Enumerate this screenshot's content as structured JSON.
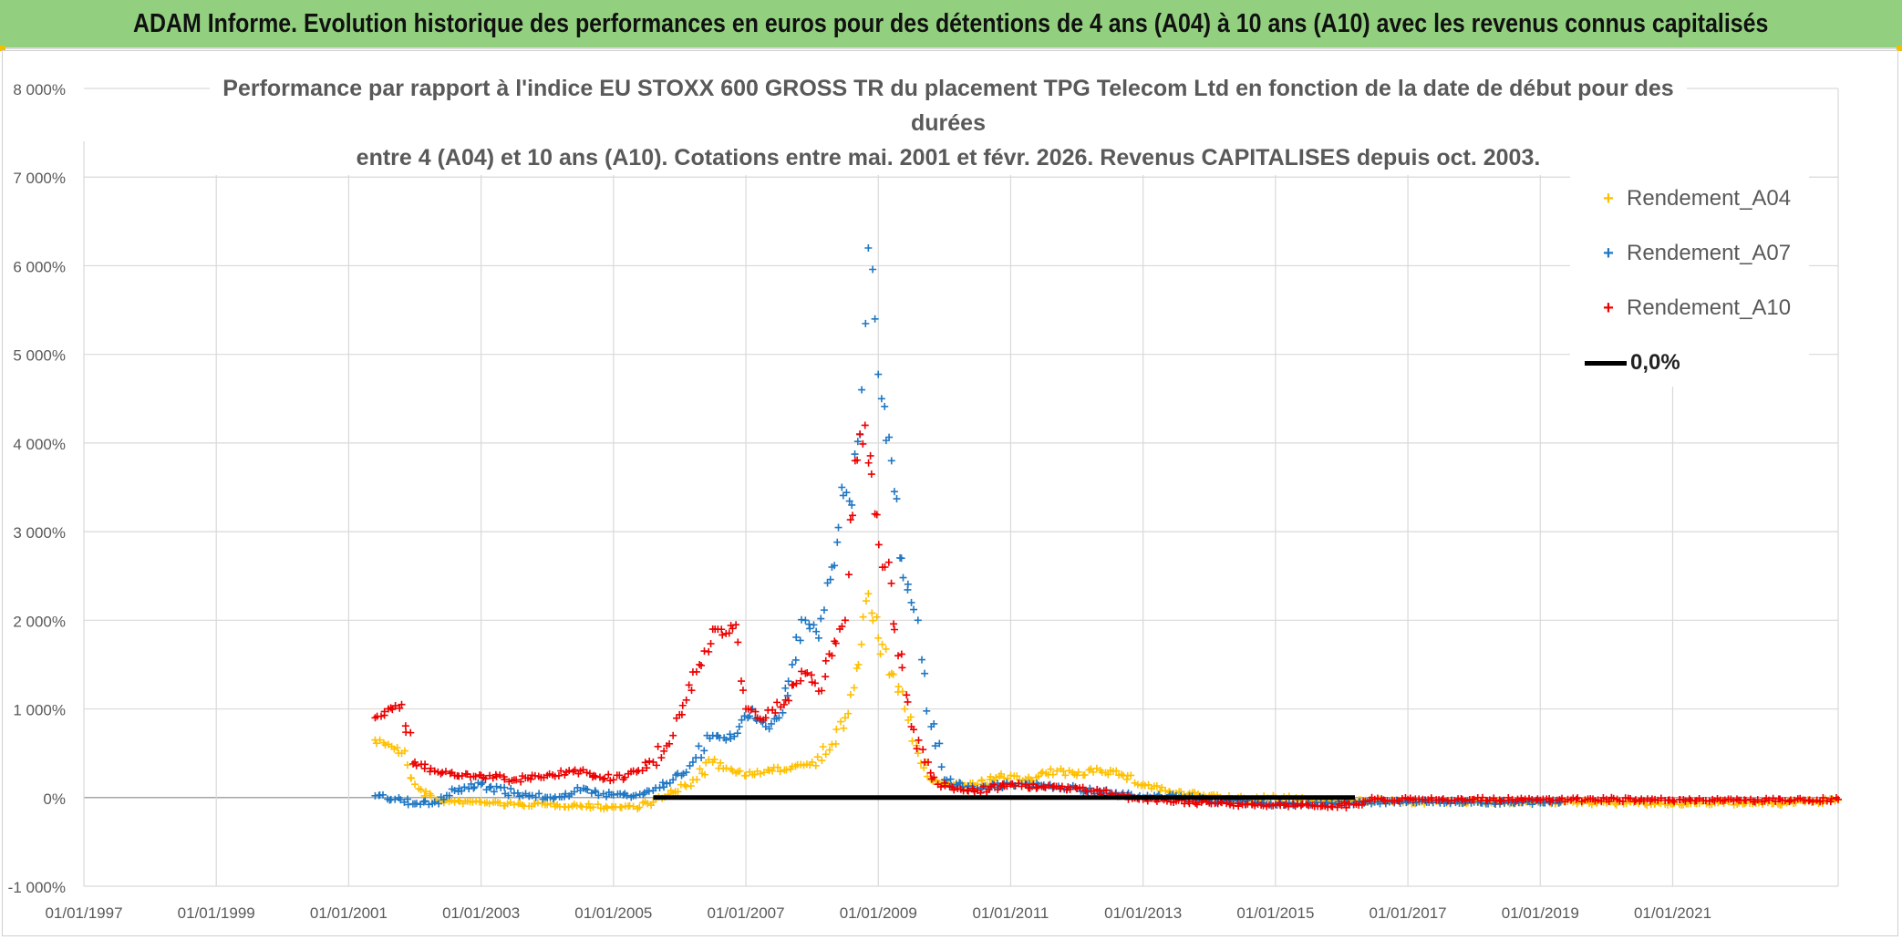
{
  "header": {
    "title": "ADAM Informe. Evolution historique des performances en euros pour des détentions de 4 ans (A04) à 10 ans (A10) avec les revenus connus capitalisés"
  },
  "colors": {
    "banner": "#92d07f",
    "A04": "#ffc000",
    "A07": "#1f77c4",
    "A10": "#ee0000",
    "zero": "#000000",
    "grid": "#d9d9d9",
    "text": "#595959"
  },
  "chart_data": {
    "type": "scatter",
    "title_line1": "Performance par rapport à l'indice EU STOXX 600 GROSS TR  du placement TPG Telecom Ltd en fonction de la date de début pour des durées",
    "title_line2": "entre 4 (A04) et 10 ans (A10). Cotations entre mai. 2001 et févr. 2026. Revenus CAPITALISES depuis oct. 2003.",
    "xlabel": "",
    "ylabel": "",
    "xlim": [
      1997.0,
      2023.5
    ],
    "ylim": [
      -1000,
      8000
    ],
    "x_ticks": [
      "01/01/1997",
      "01/01/1999",
      "01/01/2001",
      "01/01/2003",
      "01/01/2005",
      "01/01/2007",
      "01/01/2009",
      "01/01/2011",
      "01/01/2013",
      "01/01/2015",
      "01/01/2017",
      "01/01/2019",
      "01/01/2021"
    ],
    "x_tick_years": [
      1997,
      1999,
      2001,
      2003,
      2005,
      2007,
      2009,
      2011,
      2013,
      2015,
      2017,
      2019,
      2021
    ],
    "y_ticks": [
      "-1 000%",
      "0%",
      "1 000%",
      "2 000%",
      "3 000%",
      "4 000%",
      "5 000%",
      "6 000%",
      "7 000%",
      "8 000%"
    ],
    "y_tick_values": [
      -1000,
      0,
      1000,
      2000,
      3000,
      4000,
      5000,
      6000,
      7000,
      8000
    ],
    "legend": [
      "Rendement_A04",
      "Rendement_A07",
      "Rendement_A10",
      "0,0%"
    ],
    "series": [
      {
        "name": "Rendement_A04",
        "marker": "+",
        "x": [
          2001.4,
          2001.6,
          2001.8,
          2002.0,
          2002.3,
          2002.6,
          2003.0,
          2003.5,
          2004.0,
          2004.5,
          2005.0,
          2005.3,
          2005.6,
          2005.9,
          2006.2,
          2006.5,
          2006.8,
          2007.1,
          2007.4,
          2007.7,
          2008.0,
          2008.3,
          2008.5,
          2008.7,
          2008.85,
          2009.0,
          2009.2,
          2009.4,
          2009.6,
          2009.8,
          2010.0,
          2010.5,
          2011.0,
          2011.3,
          2011.7,
          2012.0,
          2012.3,
          2012.7,
          2013.0,
          2013.5,
          2014.0,
          2014.5,
          2015.0,
          2015.5,
          2016.0,
          2016.5,
          2017.0,
          2018.0,
          2019.0,
          2020.0,
          2021.0,
          2022.0,
          2022.5,
          2023.0,
          2023.5
        ],
        "y": [
          650,
          600,
          500,
          150,
          -30,
          -50,
          -50,
          -80,
          -80,
          -90,
          -110,
          -100,
          -50,
          50,
          200,
          400,
          300,
          260,
          300,
          350,
          400,
          600,
          900,
          1500,
          2300,
          1800,
          1400,
          1000,
          500,
          200,
          150,
          150,
          250,
          200,
          300,
          250,
          330,
          250,
          150,
          50,
          20,
          -20,
          0,
          -20,
          -40,
          -40,
          -50,
          -50,
          -50,
          -60,
          -70,
          -60,
          -70,
          -50,
          -30
        ]
      },
      {
        "name": "Rendement_A07",
        "marker": "+",
        "x": [
          2001.4,
          2001.7,
          2002.0,
          2002.3,
          2002.6,
          2003.0,
          2003.5,
          2004.0,
          2004.5,
          2005.0,
          2005.3,
          2005.6,
          2005.9,
          2006.2,
          2006.5,
          2006.7,
          2006.9,
          2007.1,
          2007.3,
          2007.5,
          2007.7,
          2007.9,
          2008.1,
          2008.3,
          2008.45,
          2008.6,
          2008.75,
          2008.85,
          2008.95,
          2009.05,
          2009.2,
          2009.35,
          2009.5,
          2009.6,
          2009.7,
          2009.8,
          2010.0,
          2010.5,
          2011.0,
          2011.5,
          2012.0,
          2012.5,
          2013.0,
          2013.5,
          2014.0,
          2014.5,
          2015.0,
          2015.5,
          2016.0,
          2016.5,
          2017.0,
          2018.0,
          2019.0,
          2019.3
        ],
        "y": [
          20,
          -20,
          -70,
          -50,
          80,
          150,
          50,
          0,
          80,
          30,
          20,
          80,
          200,
          400,
          700,
          650,
          800,
          1000,
          800,
          900,
          1500,
          2000,
          1800,
          2600,
          3500,
          3300,
          4600,
          6200,
          5400,
          4500,
          3800,
          2700,
          2200,
          2000,
          1400,
          800,
          200,
          100,
          150,
          140,
          100,
          50,
          0,
          20,
          -30,
          -50,
          -80,
          -60,
          -70,
          -50,
          -40,
          -50,
          -60,
          -50
        ]
      },
      {
        "name": "Rendement_A10",
        "marker": "+",
        "x": [
          2001.4,
          2001.6,
          2001.8,
          2002.0,
          2002.3,
          2002.6,
          2003.0,
          2003.5,
          2004.0,
          2004.5,
          2005.0,
          2005.3,
          2005.6,
          2005.9,
          2006.1,
          2006.3,
          2006.5,
          2006.7,
          2006.85,
          2007.0,
          2007.3,
          2007.6,
          2007.9,
          2008.1,
          2008.3,
          2008.5,
          2008.65,
          2008.8,
          2008.95,
          2009.1,
          2009.3,
          2009.5,
          2009.7,
          2009.9,
          2010.2,
          2010.5,
          2011.0,
          2011.5,
          2012.0,
          2012.5,
          2013.0,
          2013.5,
          2014.0,
          2014.5,
          2015.0,
          2015.5,
          2016.0,
          2016.5,
          2017.0,
          2018.0,
          2019.0,
          2020.0,
          2021.0,
          2022.0,
          2023.0,
          2023.5
        ],
        "y": [
          900,
          1000,
          1050,
          400,
          300,
          250,
          250,
          200,
          250,
          300,
          200,
          300,
          400,
          700,
          1100,
          1500,
          1900,
          1850,
          1950,
          1000,
          900,
          1100,
          1400,
          1200,
          1600,
          2000,
          3800,
          4200,
          3200,
          2600,
          1600,
          800,
          400,
          150,
          100,
          80,
          150,
          120,
          100,
          40,
          -20,
          -40,
          -60,
          -80,
          -80,
          -90,
          -90,
          -20,
          -20,
          -20,
          -30,
          -20,
          -30,
          -30,
          -30,
          -20
        ]
      },
      {
        "name": "0,0%",
        "marker": "line",
        "x": [
          2005.6,
          2016.2
        ],
        "y": [
          0,
          0
        ]
      }
    ]
  }
}
